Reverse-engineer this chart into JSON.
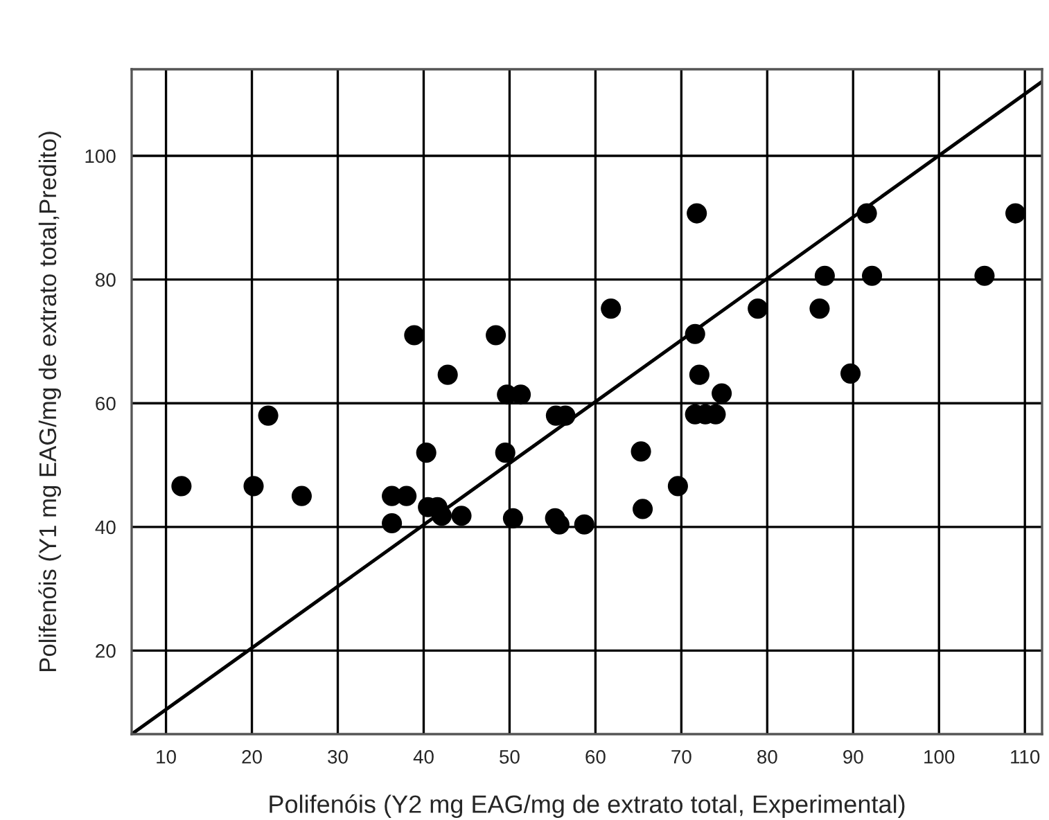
{
  "chart_data": {
    "type": "scatter",
    "xlabel": "Polifenóis (Y2 mg EAG/mg de extrato total, Experimental)",
    "ylabel": "Polifenóis (Y1 mg EAG/mg de extrato total,Predito)",
    "xlim": [
      6,
      112
    ],
    "ylim": [
      6.5,
      114
    ],
    "xticks": [
      10,
      20,
      30,
      40,
      50,
      60,
      70,
      80,
      90,
      100,
      110
    ],
    "yticks": [
      20,
      40,
      60,
      80,
      100
    ],
    "grid": true,
    "legend": false,
    "marker": "circle",
    "series": [
      {
        "color": "#000000",
        "x": [
          11.8,
          20.2,
          21.9,
          25.8,
          36.3,
          38.0,
          36.3,
          38.9,
          40.3,
          40.5,
          41.6,
          42.1,
          42.8,
          44.4,
          48.4,
          49.5,
          49.7,
          51.3,
          50.4,
          55.4,
          56.5,
          55.3,
          55.8,
          58.7,
          61.8,
          71.8,
          71.6,
          72.1,
          71.6,
          72.8,
          74.0,
          74.7,
          65.3,
          65.5,
          69.6,
          78.9,
          86.1,
          86.7,
          89.7,
          91.6,
          92.2,
          105.3,
          108.9
        ],
        "values": [
          46.6,
          46.6,
          58.0,
          45.0,
          45.0,
          45.0,
          40.6,
          71.0,
          52.0,
          43.2,
          43.2,
          41.8,
          64.6,
          41.8,
          71.0,
          52.0,
          61.4,
          61.4,
          41.4,
          58.0,
          58.0,
          41.4,
          40.4,
          40.4,
          75.3,
          90.7,
          71.2,
          64.6,
          58.2,
          58.2,
          58.2,
          61.6,
          52.2,
          42.9,
          46.6,
          75.3,
          75.3,
          80.6,
          64.8,
          90.7,
          80.6,
          80.6,
          90.7
        ]
      },
      {
        "type": "line",
        "color": "#000000",
        "x": [
          6,
          112
        ],
        "values": [
          6.5,
          112
        ],
        "marker": "none",
        "line_style": "solid"
      }
    ]
  }
}
